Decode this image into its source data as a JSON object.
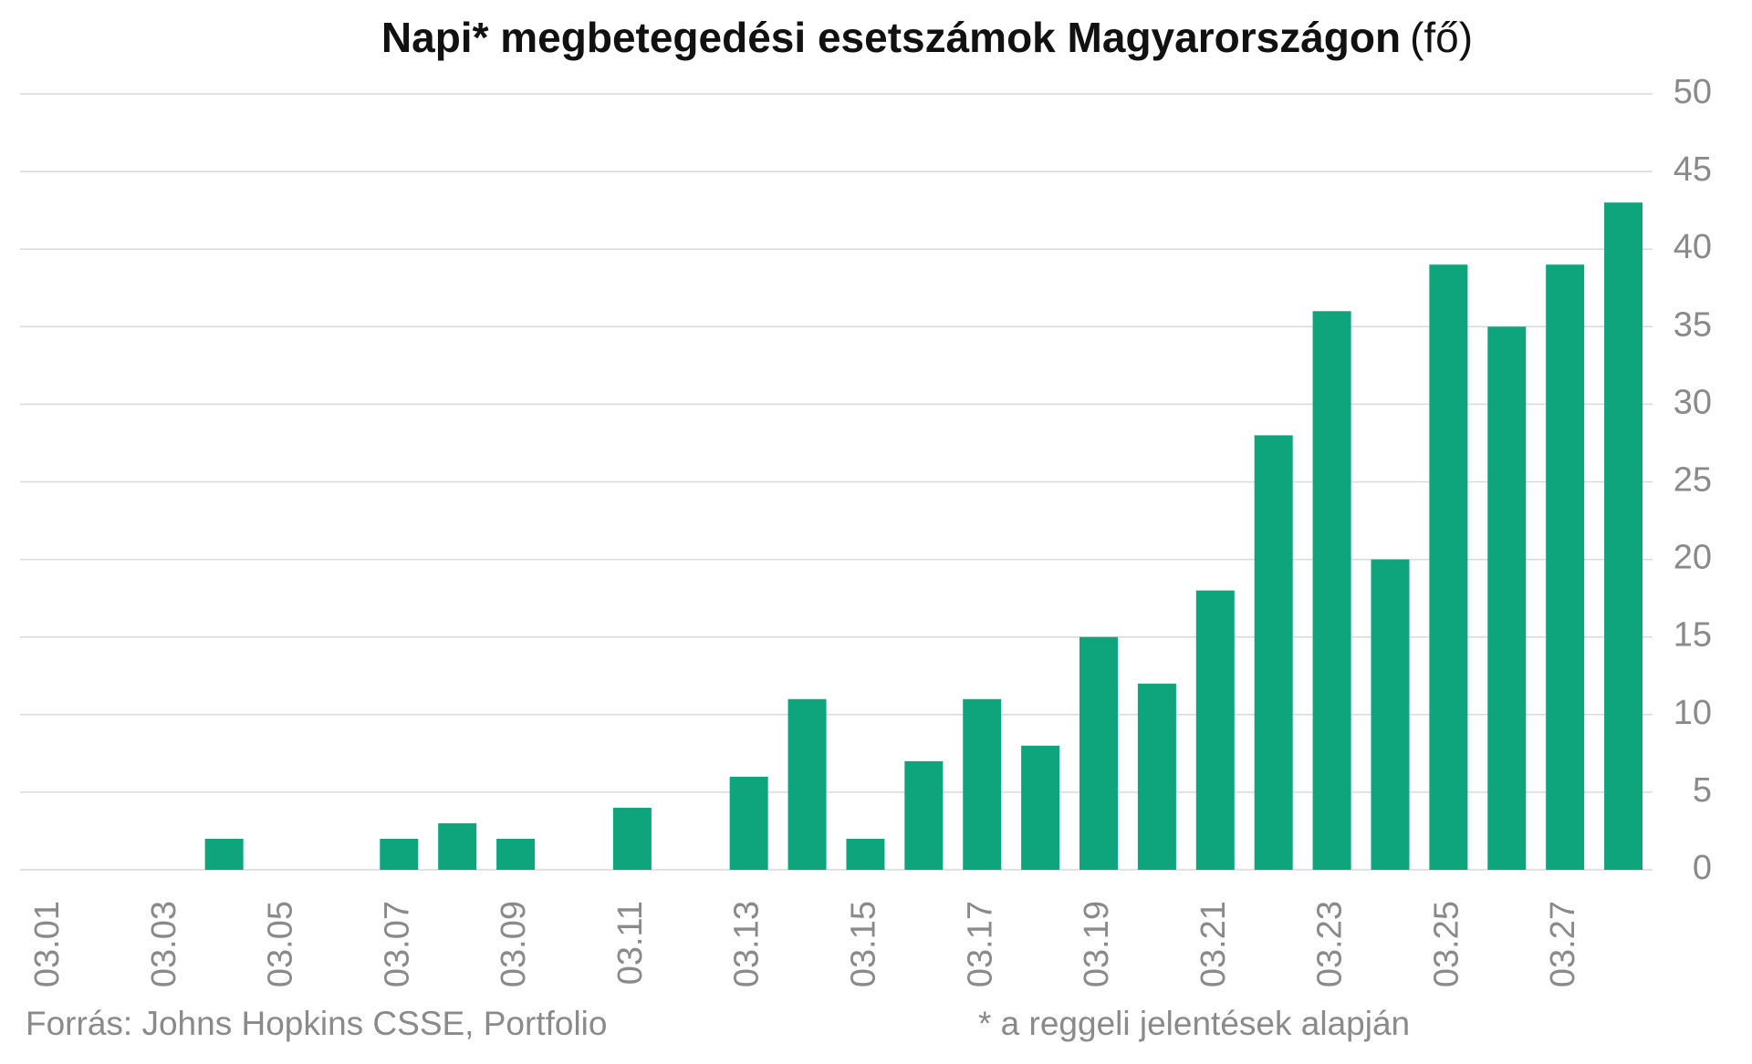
{
  "chart_data": {
    "type": "bar",
    "title": "Napi* megbetegedési esetszámok Magyarországon",
    "title_unit": "(fő)",
    "source": "Forrás: Johns Hopkins CSSE, Portfolio",
    "note": "* a reggeli jelentések alapján",
    "categories": [
      "03.01",
      null,
      "03.03",
      null,
      "03.05",
      null,
      "03.07",
      null,
      "03.09",
      null,
      "03.11",
      null,
      "03.13",
      null,
      "03.15",
      null,
      "03.17",
      null,
      "03.19",
      null,
      "03.21",
      null,
      "03.23",
      null,
      "03.25",
      null,
      "03.27",
      null
    ],
    "values": [
      0,
      0,
      0,
      2,
      0,
      0,
      2,
      3,
      2,
      0,
      4,
      0,
      6,
      11,
      2,
      7,
      11,
      8,
      15,
      12,
      18,
      28,
      36,
      20,
      39,
      35,
      39,
      43
    ],
    "color": "#0ea47c",
    "ylim": [
      0,
      50
    ],
    "yticks": [
      0,
      5,
      10,
      15,
      20,
      25,
      30,
      35,
      40,
      45,
      50
    ],
    "grid": true
  }
}
